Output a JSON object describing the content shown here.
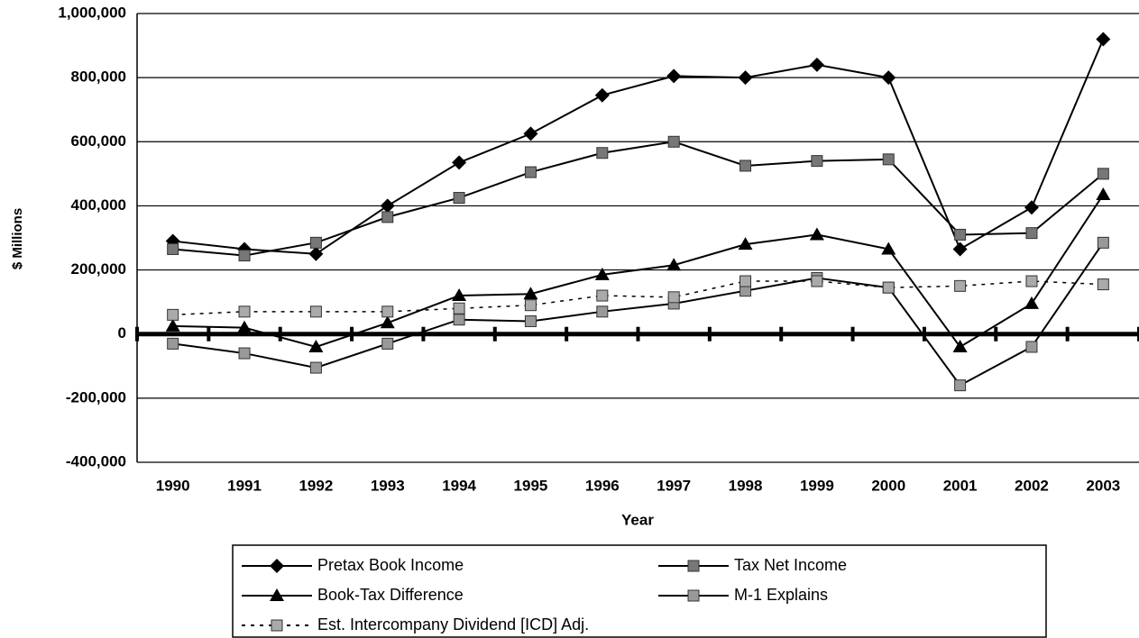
{
  "chart_data": {
    "type": "line",
    "x_label": "Year",
    "y_label": "$ Millions",
    "categories": [
      "1990",
      "1991",
      "1992",
      "1993",
      "1994",
      "1995",
      "1996",
      "1997",
      "1998",
      "1999",
      "2000",
      "2001",
      "2002",
      "2003"
    ],
    "series": [
      {
        "name": "Pretax Book Income",
        "color": "#000000",
        "marker": "diamond",
        "marker_color": "#000000",
        "dashed": false,
        "values": [
          290000,
          265000,
          250000,
          400000,
          535000,
          625000,
          745000,
          805000,
          800000,
          840000,
          800000,
          265000,
          395000,
          920000
        ]
      },
      {
        "name": "Tax Net Income",
        "color": "#000000",
        "marker": "square",
        "marker_color": "#777777",
        "dashed": false,
        "values": [
          265000,
          245000,
          285000,
          365000,
          425000,
          505000,
          565000,
          600000,
          525000,
          540000,
          545000,
          310000,
          315000,
          500000
        ]
      },
      {
        "name": "Book-Tax Difference",
        "color": "#000000",
        "marker": "triangle",
        "marker_color": "#000000",
        "dashed": false,
        "values": [
          25000,
          20000,
          -40000,
          35000,
          120000,
          125000,
          185000,
          215000,
          280000,
          310000,
          265000,
          -40000,
          95000,
          435000
        ]
      },
      {
        "name": "M-1 Explains",
        "color": "#000000",
        "marker": "square",
        "marker_color": "#999999",
        "dashed": false,
        "values": [
          -30000,
          -60000,
          -105000,
          -30000,
          45000,
          40000,
          70000,
          95000,
          135000,
          175000,
          145000,
          -160000,
          -40000,
          285000
        ]
      },
      {
        "name": "Est. Intercompany Dividend [ICD] Adj.",
        "color": "#000000",
        "marker": "square",
        "marker_color": "#aaaaaa",
        "dashed": true,
        "values": [
          60000,
          70000,
          70000,
          70000,
          80000,
          90000,
          120000,
          115000,
          165000,
          165000,
          145000,
          150000,
          165000,
          155000
        ]
      }
    ],
    "ylim": [
      -400000,
      1000000
    ],
    "yticks": [
      {
        "value": -400000,
        "label": "-400,000"
      },
      {
        "value": -200000,
        "label": "-200,000"
      },
      0,
      {
        "value": 200000,
        "label": "200,000"
      },
      {
        "value": 400000,
        "label": "400,000"
      },
      {
        "value": 600000,
        "label": "600,000"
      },
      {
        "value": 800000,
        "label": "800,000"
      },
      {
        "value": 1000000,
        "label": "1,000,000"
      }
    ],
    "grid": true
  }
}
